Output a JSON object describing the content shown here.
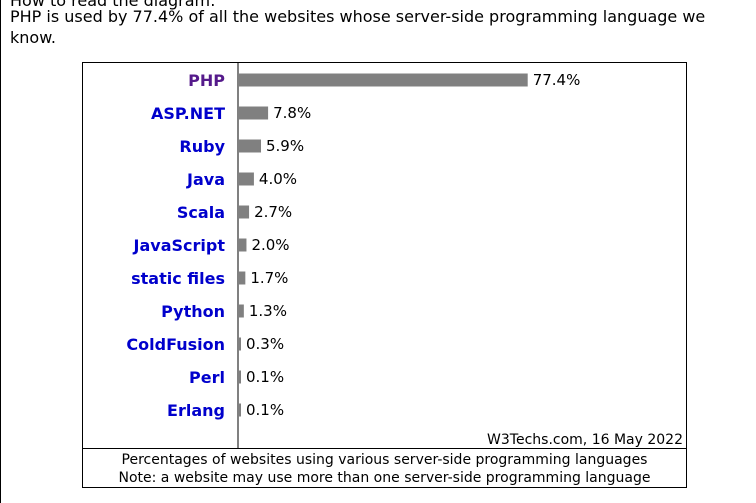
{
  "intro": {
    "cut_line": "How to read the diagram:",
    "text": "PHP is used by 77.4% of all the websites whose server-side programming language we know."
  },
  "credit": "W3Techs.com, 16 May 2022",
  "caption": {
    "line1": "Percentages of websites using various server-side programming languages",
    "line2": "Note: a website may use more than one server-side programming language"
  },
  "colors": {
    "bar": "#808080",
    "link": "#0000cc",
    "visited": "#551a8b"
  },
  "chart_data": {
    "type": "bar",
    "orientation": "horizontal",
    "categories": [
      "PHP",
      "ASP.NET",
      "Ruby",
      "Java",
      "Scala",
      "JavaScript",
      "static files",
      "Python",
      "ColdFusion",
      "Perl",
      "Erlang"
    ],
    "values": [
      77.4,
      7.8,
      5.9,
      4.0,
      2.7,
      2.0,
      1.7,
      1.3,
      0.3,
      0.1,
      0.1
    ],
    "value_labels": [
      "77.4%",
      "7.8%",
      "5.9%",
      "4.0%",
      "2.7%",
      "2.0%",
      "1.7%",
      "1.3%",
      "0.3%",
      "0.1%",
      "0.1%"
    ],
    "xlim": [
      0,
      100
    ],
    "grid": false,
    "legend": "none"
  }
}
